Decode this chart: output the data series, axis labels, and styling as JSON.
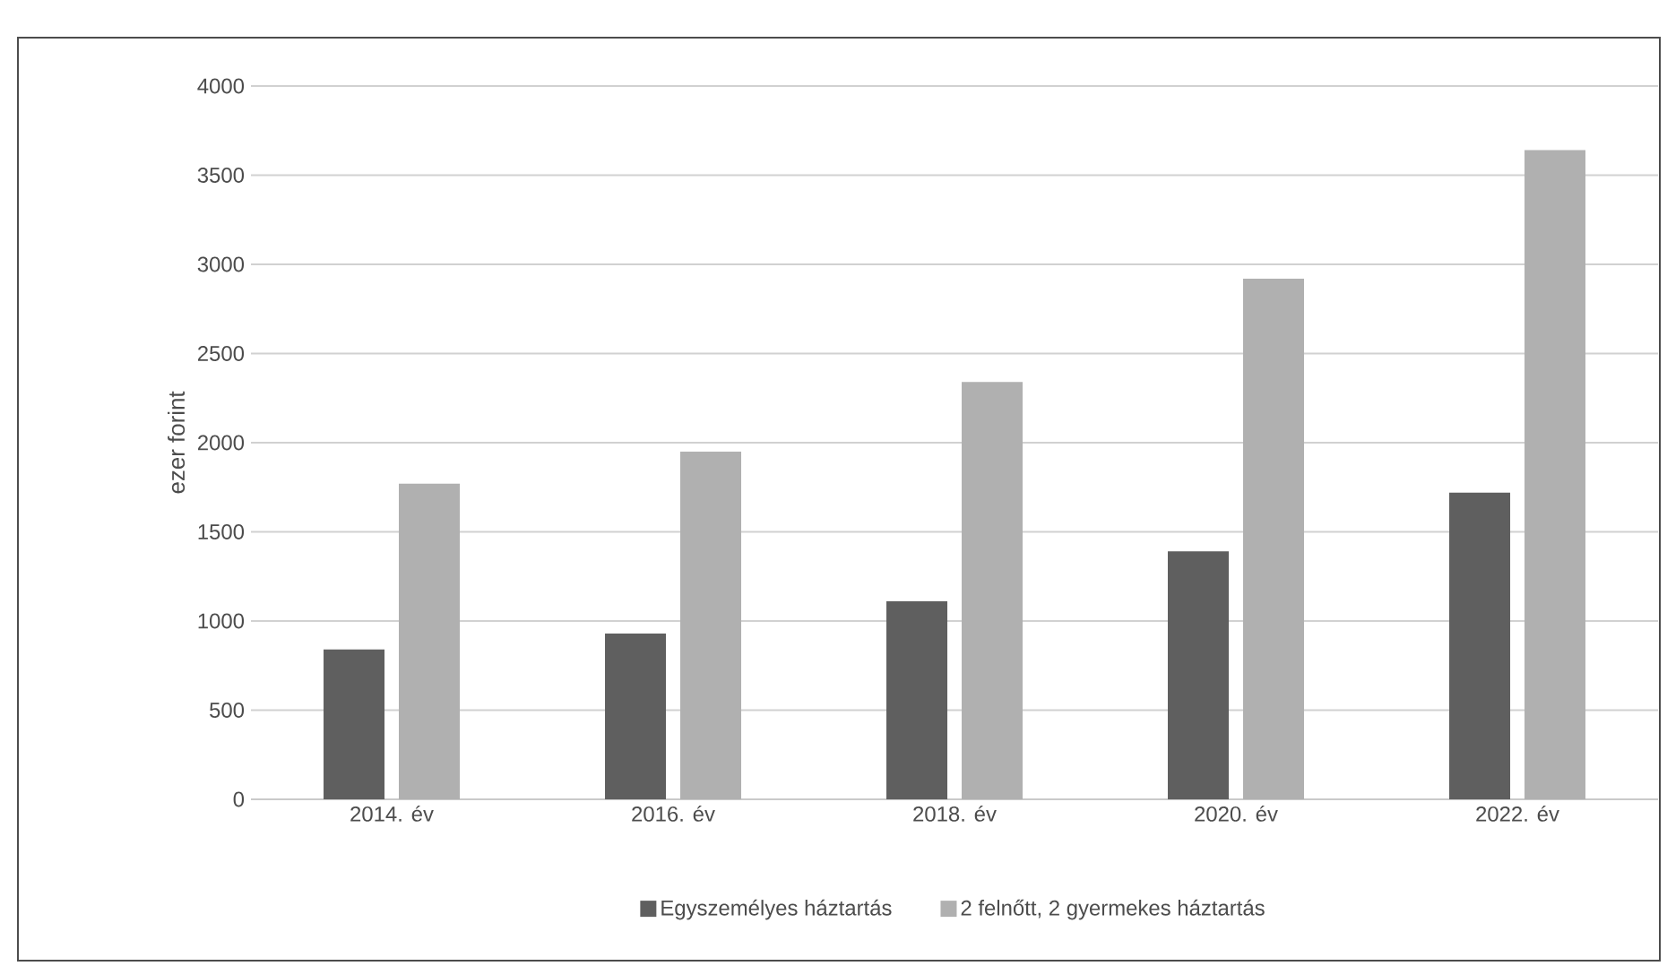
{
  "chart_data": {
    "type": "bar",
    "ylabel": "ezer forint",
    "categories": [
      "2014. év",
      "2016. év",
      "2018. év",
      "2020. év",
      "2022. év"
    ],
    "series": [
      {
        "name": "Egyszemélyes háztartás",
        "color": "#5f5f5f",
        "values": [
          840,
          930,
          1110,
          1390,
          1720
        ]
      },
      {
        "name": "2 felnőtt, 2 gyermekes háztartás",
        "color": "#b0b0b0",
        "values": [
          1770,
          1950,
          2340,
          2920,
          3640
        ]
      }
    ],
    "ylim": [
      0,
      4000
    ],
    "yticks": [
      0,
      500,
      1000,
      1500,
      2000,
      2500,
      3000,
      3500,
      4000
    ],
    "grid": "y",
    "legend": "bottom"
  }
}
